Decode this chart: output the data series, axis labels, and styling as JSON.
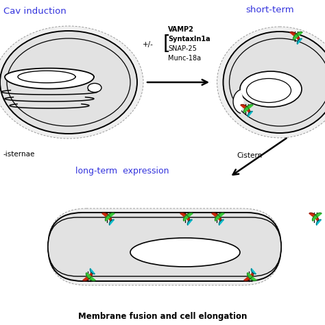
{
  "bg_color": "#ffffff",
  "blue_color": "#3333dd",
  "text_color": "#000000",
  "green_color": "#33cc33",
  "red_color": "#cc2200",
  "cyan_color": "#00bbcc",
  "gray_cell": "#e2e2e2",
  "title1": "Cav induction",
  "title2": "short-term",
  "title3": "long-term  expression",
  "bottom_label": "Membrane fusion and cell elongation",
  "label_left": "-isternae",
  "label_right": "Cistern",
  "prot1": "VAMP2",
  "prot2": "SyntaxIn1a",
  "prot3": "SNAP-25",
  "prot4": "Munc-18a"
}
